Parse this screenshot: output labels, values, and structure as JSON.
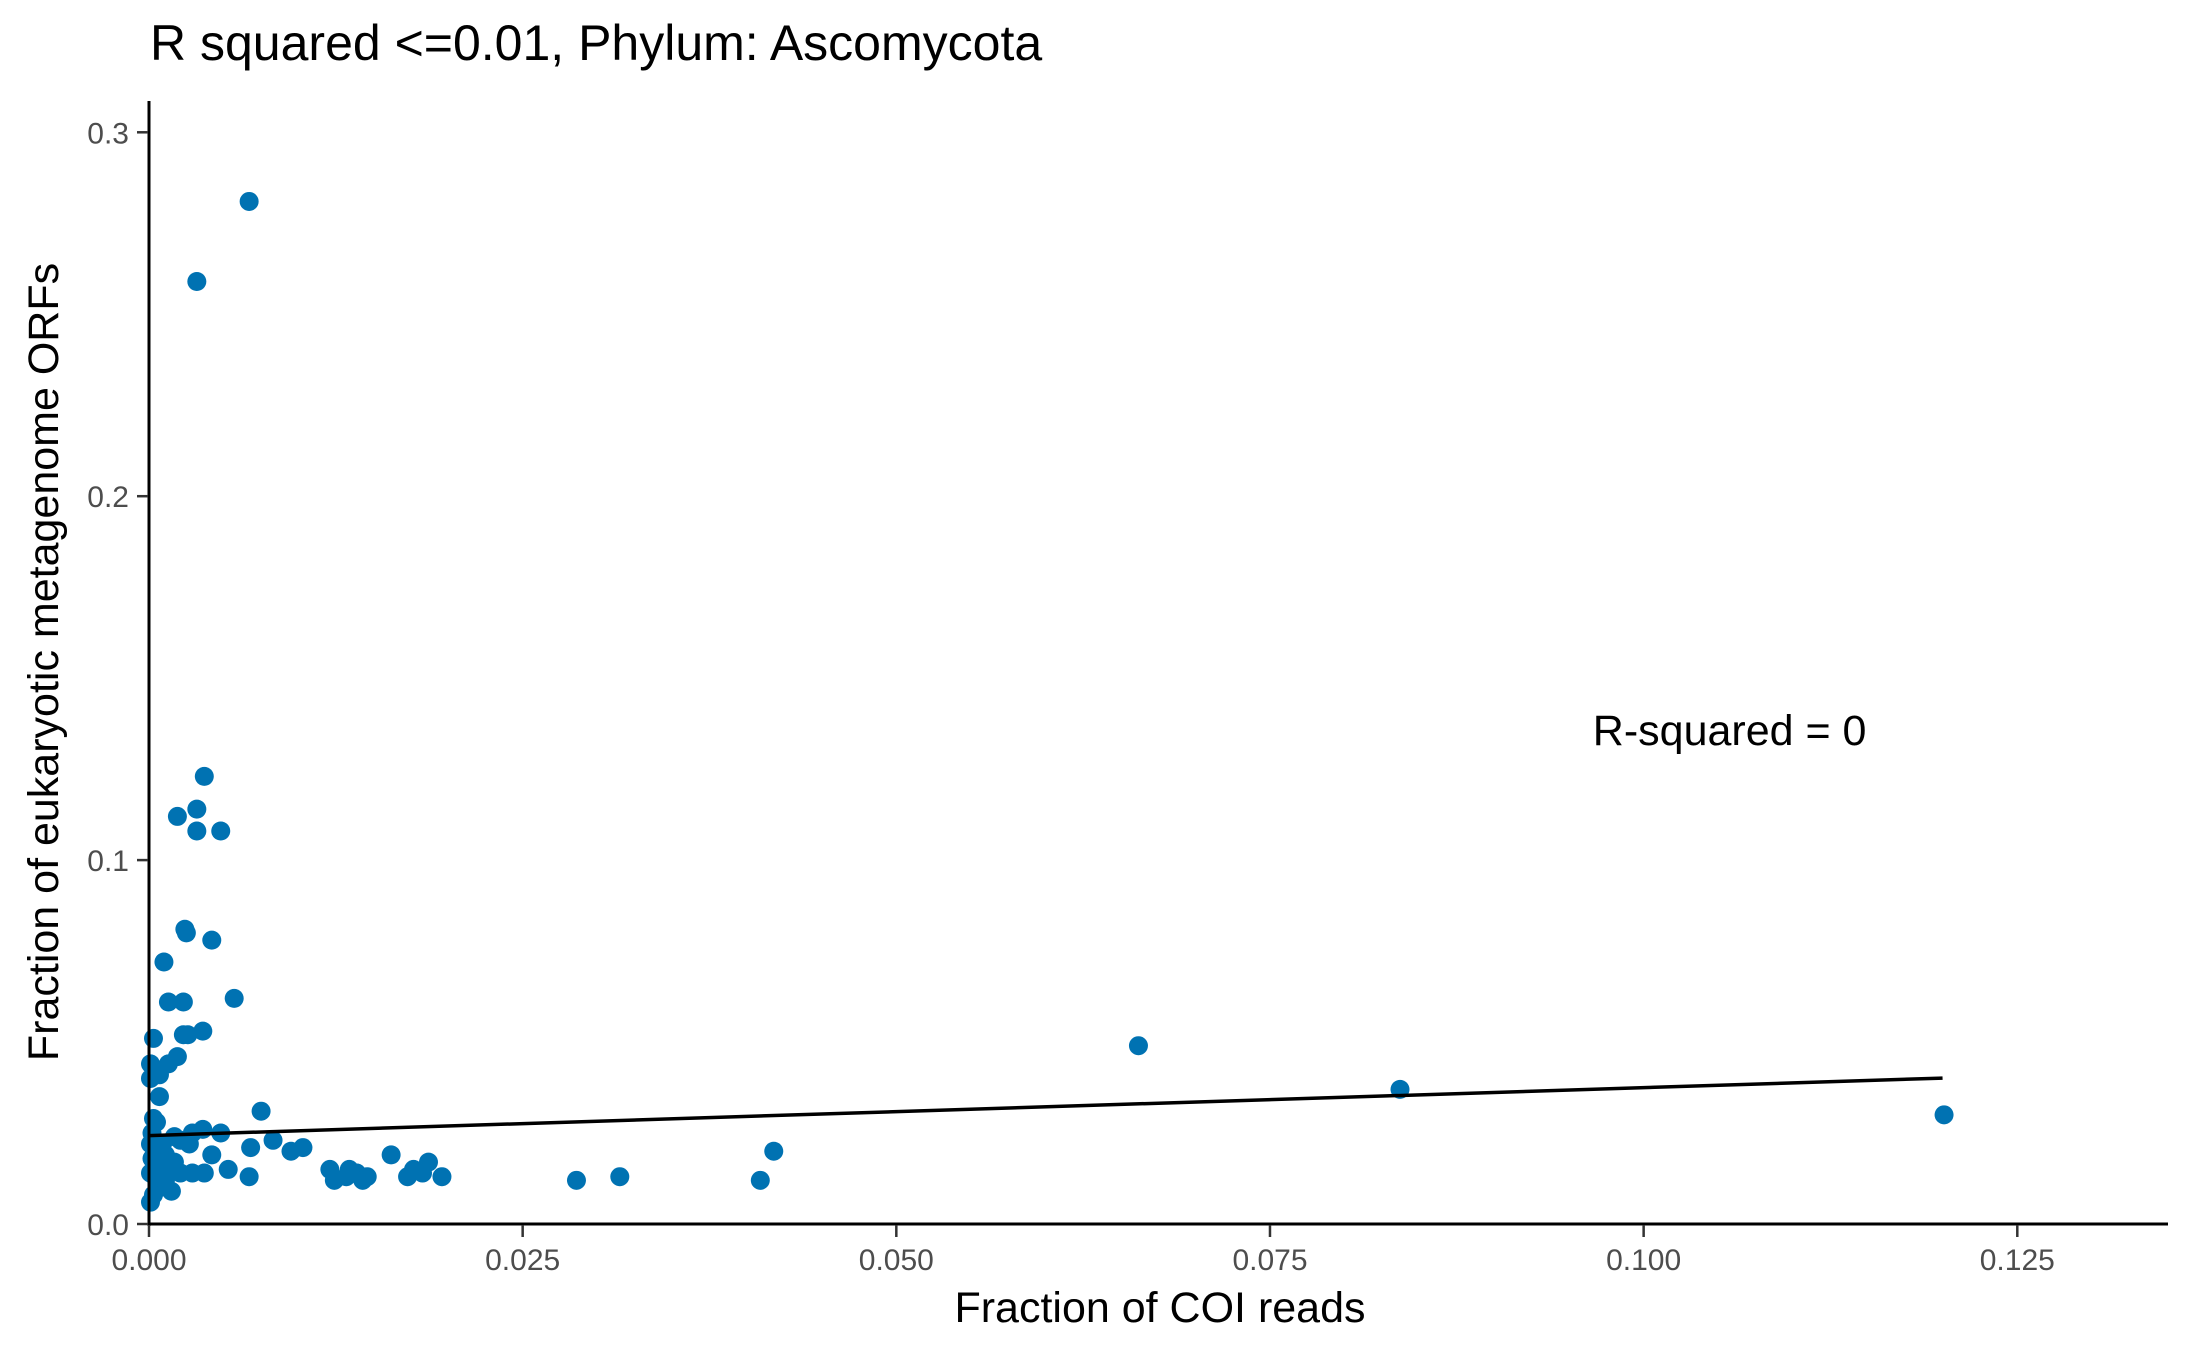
{
  "chart_data": {
    "type": "scatter",
    "title": "R squared <=0.01, Phylum:  Ascomycota",
    "xlabel": "Fraction of COI reads",
    "ylabel": "Fraction of eukaryotic metagenome ORFs",
    "xlim": [
      0,
      0.132
    ],
    "ylim": [
      0,
      0.3
    ],
    "xticks": [
      0,
      0.025,
      0.05,
      0.075,
      0.1,
      0.125
    ],
    "xtick_labels": [
      "0.000",
      "0.025",
      "0.050",
      "0.075",
      "0.100",
      "0.125"
    ],
    "yticks": [
      0,
      0.1,
      0.2,
      0.3
    ],
    "ytick_labels": [
      "0.0",
      "0.1",
      "0.2",
      "0.3"
    ],
    "grid": false,
    "legend": "none",
    "point_color": "#0072B2",
    "line_color": "#000000",
    "annotation": {
      "text": "R-squared =  0",
      "x": 0.1065,
      "y": 0.136
    },
    "regression_line": {
      "x": [
        0,
        0.12
      ],
      "y": [
        0.0243,
        0.0401
      ]
    },
    "points": [
      [
        0.0067,
        0.281
      ],
      [
        0.0032,
        0.259
      ],
      [
        0.0037,
        0.123
      ],
      [
        0.0032,
        0.114
      ],
      [
        0.0019,
        0.112
      ],
      [
        0.0032,
        0.108
      ],
      [
        0.0048,
        0.108
      ],
      [
        0.0024,
        0.081
      ],
      [
        0.0025,
        0.08
      ],
      [
        0.0042,
        0.078
      ],
      [
        0.001,
        0.072
      ],
      [
        0.0013,
        0.061
      ],
      [
        0.0023,
        0.061
      ],
      [
        0.0057,
        0.062
      ],
      [
        0.0036,
        0.053
      ],
      [
        0.0023,
        0.052
      ],
      [
        0.0026,
        0.052
      ],
      [
        0.0003,
        0.051
      ],
      [
        0.0019,
        0.046
      ],
      [
        0.0013,
        0.044
      ],
      [
        0.0001,
        0.044
      ],
      [
        0.0007,
        0.041
      ],
      [
        0.0001,
        0.04
      ],
      [
        0.0007,
        0.035
      ],
      [
        0.0075,
        0.031
      ],
      [
        0.0003,
        0.029
      ],
      [
        0.0005,
        0.028
      ],
      [
        0.0036,
        0.026
      ],
      [
        0.0048,
        0.025
      ],
      [
        0.0029,
        0.025
      ],
      [
        0.0017,
        0.024
      ],
      [
        0.0002,
        0.025
      ],
      [
        0.0083,
        0.023
      ],
      [
        0.0027,
        0.022
      ],
      [
        0.0021,
        0.023
      ],
      [
        0.0009,
        0.022
      ],
      [
        0.0001,
        0.022
      ],
      [
        0.0068,
        0.021
      ],
      [
        0.0095,
        0.02
      ],
      [
        0.0103,
        0.021
      ],
      [
        0.0042,
        0.019
      ],
      [
        0.0011,
        0.019
      ],
      [
        0.0004,
        0.02
      ],
      [
        0.0017,
        0.017
      ],
      [
        0.0006,
        0.017
      ],
      [
        0.0002,
        0.018
      ],
      [
        0.0053,
        0.015
      ],
      [
        0.0037,
        0.014
      ],
      [
        0.0029,
        0.014
      ],
      [
        0.0021,
        0.014
      ],
      [
        0.0013,
        0.015
      ],
      [
        0.0067,
        0.013
      ],
      [
        0.0011,
        0.012
      ],
      [
        0.0004,
        0.013
      ],
      [
        0.0001,
        0.014
      ],
      [
        0.0007,
        0.01
      ],
      [
        0.0015,
        0.009
      ],
      [
        0.0003,
        0.008
      ],
      [
        0.0001,
        0.006
      ],
      [
        0.0121,
        0.015
      ],
      [
        0.0124,
        0.012
      ],
      [
        0.0134,
        0.015
      ],
      [
        0.0139,
        0.014
      ],
      [
        0.0132,
        0.013
      ],
      [
        0.0143,
        0.012
      ],
      [
        0.0146,
        0.013
      ],
      [
        0.0162,
        0.019
      ],
      [
        0.0173,
        0.013
      ],
      [
        0.0177,
        0.015
      ],
      [
        0.0183,
        0.014
      ],
      [
        0.0187,
        0.017
      ],
      [
        0.0196,
        0.013
      ],
      [
        0.0286,
        0.012
      ],
      [
        0.0315,
        0.013
      ],
      [
        0.0409,
        0.012
      ],
      [
        0.0418,
        0.02
      ],
      [
        0.0662,
        0.049
      ],
      [
        0.0837,
        0.037
      ],
      [
        0.1201,
        0.03
      ]
    ]
  }
}
